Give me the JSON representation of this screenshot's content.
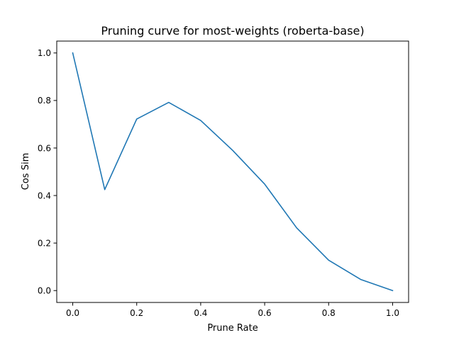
{
  "chart_data": {
    "type": "line",
    "title": "Pruning curve for most-weights (roberta-base)",
    "xlabel": "Prune Rate",
    "ylabel": "Cos Sim",
    "xlim": [
      -0.05,
      1.05
    ],
    "ylim": [
      -0.05,
      1.05
    ],
    "xticks": [
      0.0,
      0.2,
      0.4,
      0.6,
      0.8,
      1.0
    ],
    "xtick_labels": [
      "0.0",
      "0.2",
      "0.4",
      "0.6",
      "0.8",
      "1.0"
    ],
    "yticks": [
      0.0,
      0.2,
      0.4,
      0.6,
      0.8,
      1.0
    ],
    "ytick_labels": [
      "0.0",
      "0.2",
      "0.4",
      "0.6",
      "0.8",
      "1.0"
    ],
    "grid": false,
    "series": [
      {
        "color": "#1f77b4",
        "x": [
          0.0,
          0.1,
          0.2,
          0.3,
          0.4,
          0.5,
          0.6,
          0.7,
          0.8,
          0.9,
          1.0
        ],
        "y": [
          1.0,
          0.425,
          0.722,
          0.792,
          0.716,
          0.59,
          0.448,
          0.264,
          0.128,
          0.047,
          0.0
        ]
      }
    ]
  }
}
